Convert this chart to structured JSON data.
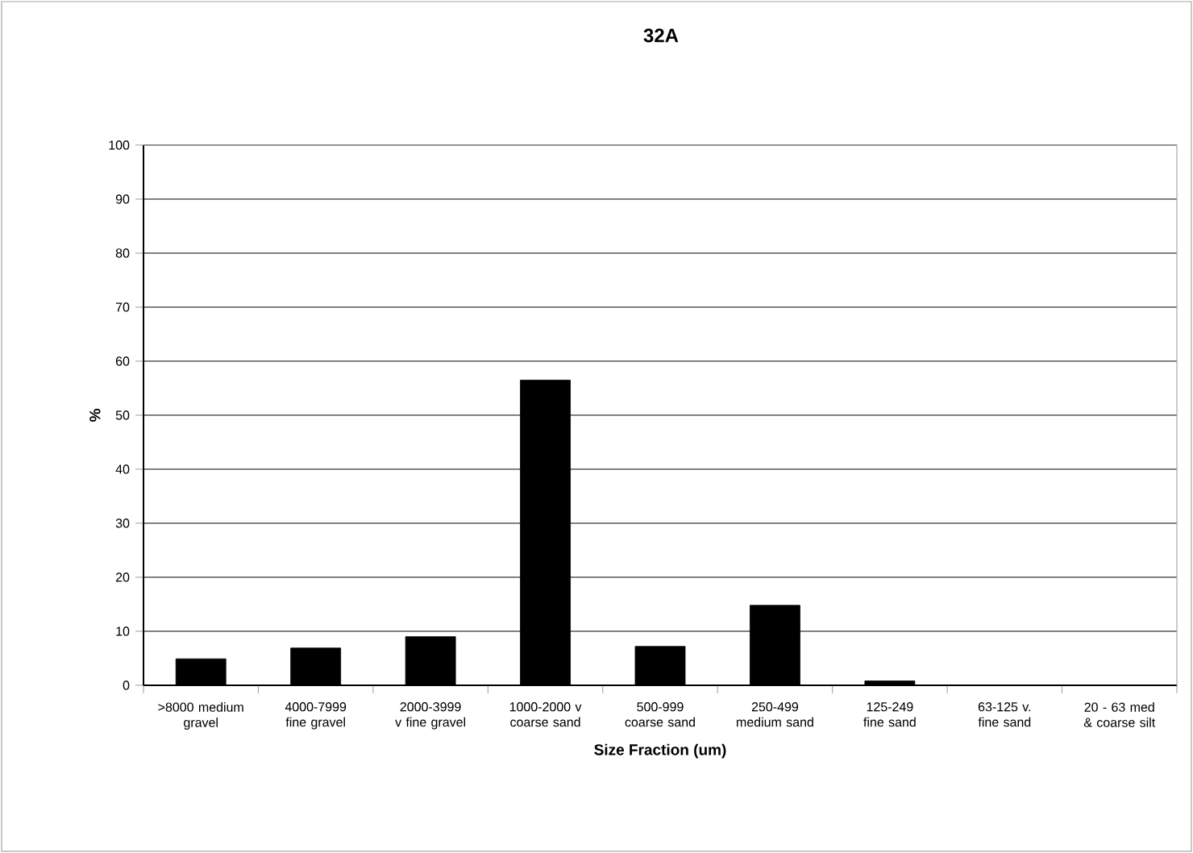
{
  "chart_data": {
    "type": "bar",
    "title": "32A",
    "xlabel": "Size Fraction (um)",
    "ylabel": "%",
    "categories": [
      ">8000 medium gravel",
      "4000-7999 fine gravel",
      "2000-3999 v fine gravel",
      "1000-2000 v coarse sand",
      "500-999 coarse sand",
      "250-499 medium sand",
      "125-249 fine sand",
      "63-125 v. fine sand",
      "20 - 63 med & coarse silt"
    ],
    "values": [
      4.9,
      6.9,
      9.0,
      56.5,
      7.2,
      14.8,
      0.8,
      0,
      0
    ],
    "color": "#000000",
    "ylim": [
      0,
      100
    ],
    "yticks": [
      0,
      10,
      20,
      30,
      40,
      50,
      60,
      70,
      80,
      90,
      100
    ],
    "grid": "y"
  }
}
